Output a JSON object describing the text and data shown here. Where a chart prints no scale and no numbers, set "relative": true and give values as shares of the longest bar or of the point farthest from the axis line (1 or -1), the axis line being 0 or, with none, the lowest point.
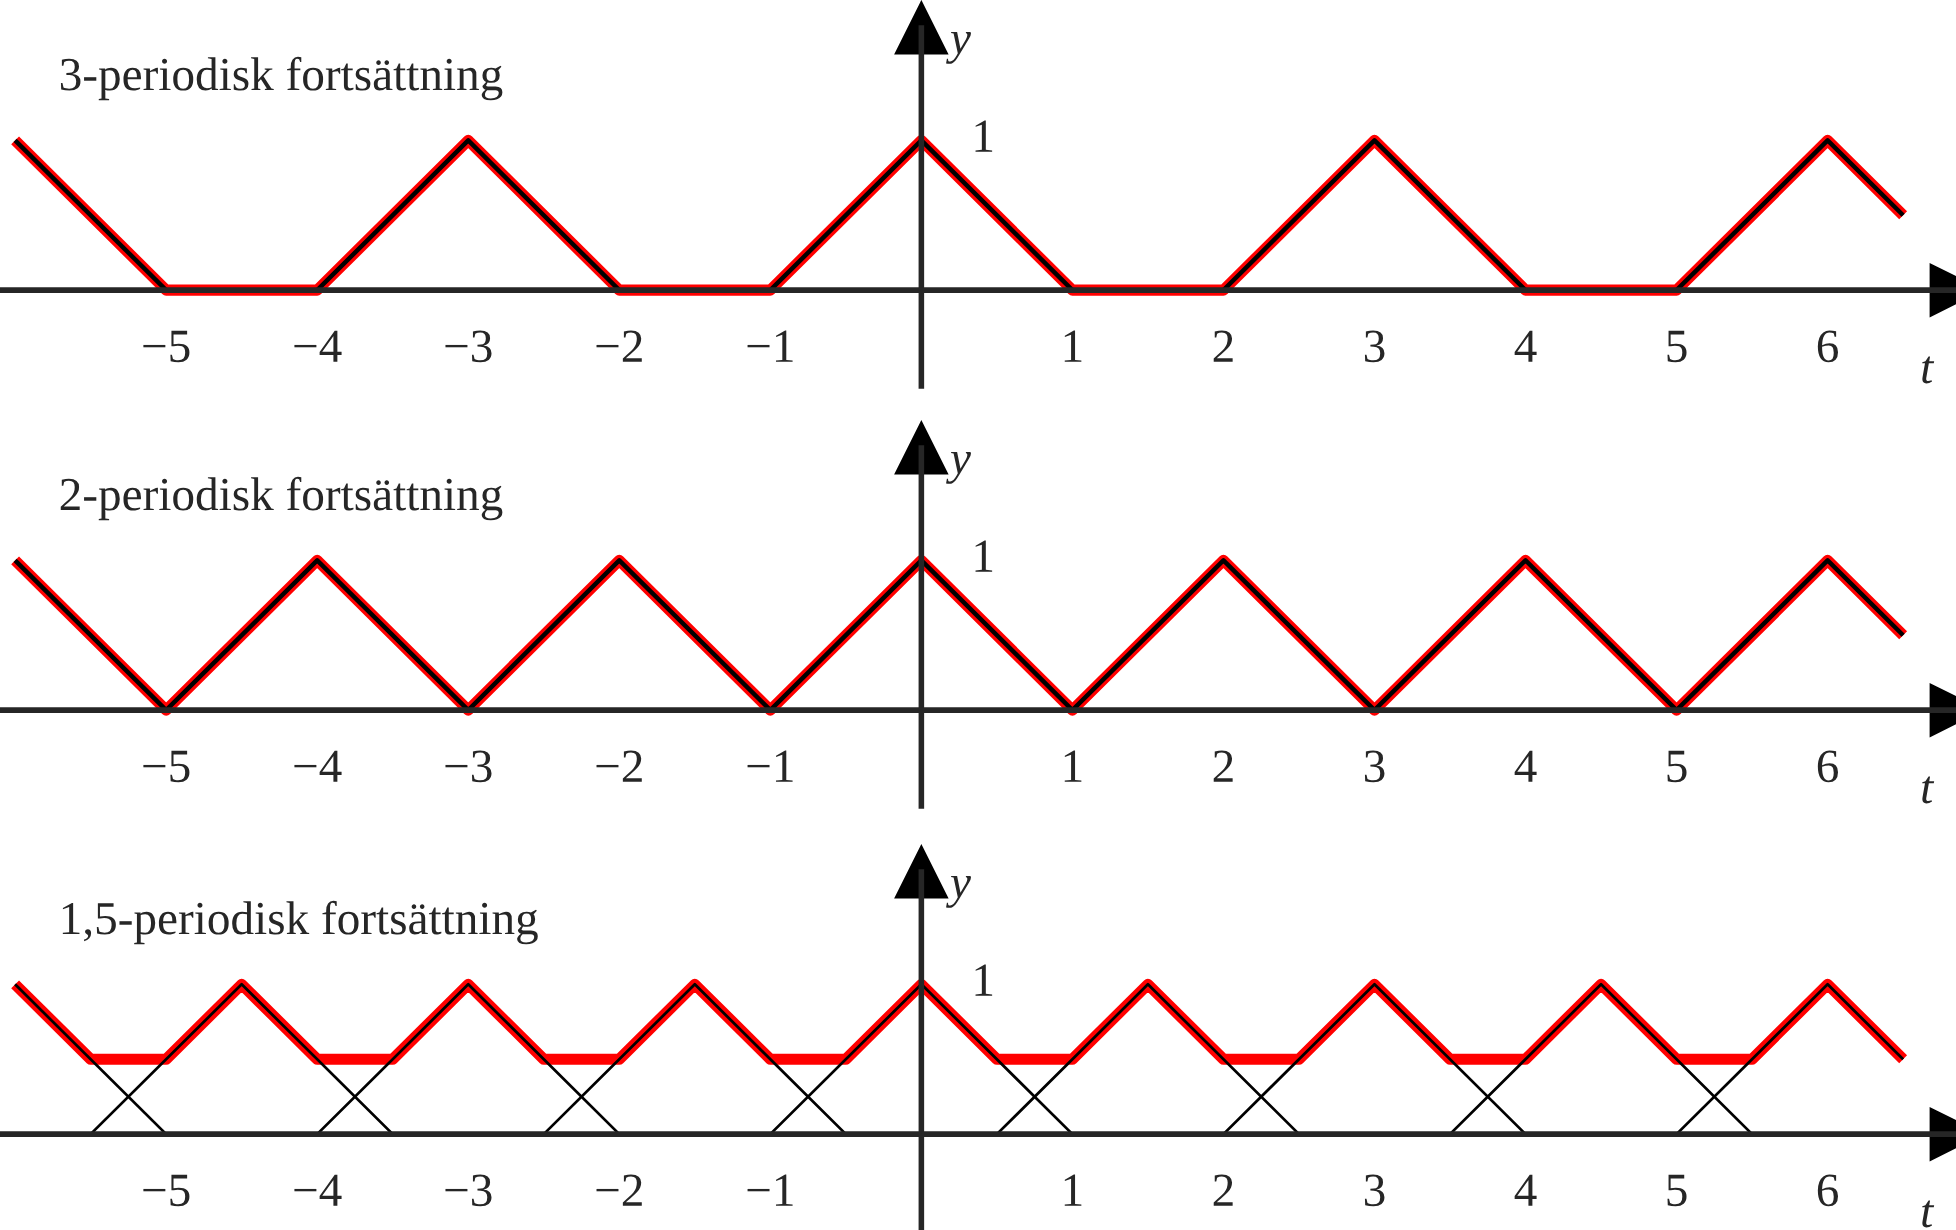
{
  "chart_data": [
    {
      "type": "line",
      "title": "3-periodisk fortsättning",
      "xlabel": "t",
      "ylabel": "y",
      "xlim": [
        -6.1,
        6.85
      ],
      "relative": true,
      "annotations": [
        "1"
      ],
      "grid": false,
      "legend": false,
      "xticks": [
        {
          "value": -5,
          "label": "−5"
        },
        {
          "value": -4,
          "label": "−4"
        },
        {
          "value": -3,
          "label": "−3"
        },
        {
          "value": -2,
          "label": "−2"
        },
        {
          "value": -1,
          "label": "−1"
        },
        1,
        2,
        3,
        4,
        5,
        6
      ],
      "series": [
        {
          "color": "#ff0000",
          "x": [
            -6,
            -5,
            -4,
            -3,
            -2,
            -1,
            0,
            1,
            2,
            3,
            4,
            5,
            6,
            6.5
          ],
          "values": [
            1,
            0,
            0,
            1,
            0,
            0,
            1,
            0,
            0,
            1,
            0,
            0,
            1,
            0.5
          ]
        },
        {
          "color": "#000000",
          "x": [
            -6,
            -5
          ],
          "values": [
            1,
            0
          ]
        },
        {
          "color": "#000000",
          "x": [
            -4,
            -3,
            -2
          ],
          "values": [
            0,
            1,
            0
          ]
        },
        {
          "color": "#000000",
          "x": [
            -1,
            0,
            1
          ],
          "values": [
            0,
            1,
            0
          ]
        },
        {
          "color": "#000000",
          "x": [
            2,
            3,
            4
          ],
          "values": [
            0,
            1,
            0
          ]
        },
        {
          "color": "#000000",
          "x": [
            5,
            6,
            6.5
          ],
          "values": [
            0,
            1,
            0.5
          ]
        }
      ]
    },
    {
      "type": "line",
      "title": "2-periodisk fortsättning",
      "xlabel": "t",
      "ylabel": "y",
      "xlim": [
        -6.1,
        6.85
      ],
      "relative": true,
      "annotations": [
        "1"
      ],
      "grid": false,
      "legend": false,
      "xticks": [
        {
          "value": -5,
          "label": "−5"
        },
        {
          "value": -4,
          "label": "−4"
        },
        {
          "value": -3,
          "label": "−3"
        },
        {
          "value": -2,
          "label": "−2"
        },
        {
          "value": -1,
          "label": "−1"
        },
        1,
        2,
        3,
        4,
        5,
        6
      ],
      "series": [
        {
          "color": "#ff0000",
          "x": [
            -6,
            -5,
            -4,
            -3,
            -2,
            -1,
            0,
            1,
            2,
            3,
            4,
            5,
            6,
            6.5
          ],
          "values": [
            1,
            0,
            1,
            0,
            1,
            0,
            1,
            0,
            1,
            0,
            1,
            0,
            1,
            0.5
          ]
        },
        {
          "color": "#000000",
          "x": [
            -6,
            -5,
            -4,
            -3,
            -2,
            -1,
            0,
            1,
            2,
            3,
            4,
            5,
            6,
            6.5
          ],
          "values": [
            1,
            0,
            1,
            0,
            1,
            0,
            1,
            0,
            1,
            0,
            1,
            0,
            1,
            0.5
          ]
        }
      ]
    },
    {
      "type": "line",
      "title": "1,5-periodisk fortsättning",
      "xlabel": "t",
      "ylabel": "y",
      "xlim": [
        -6.1,
        6.85
      ],
      "relative": true,
      "annotations": [
        "1"
      ],
      "grid": false,
      "legend": false,
      "xticks": [
        {
          "value": -5,
          "label": "−5"
        },
        {
          "value": -4,
          "label": "−4"
        },
        {
          "value": -3,
          "label": "−3"
        },
        {
          "value": -2,
          "label": "−2"
        },
        {
          "value": -1,
          "label": "−1"
        },
        1,
        2,
        3,
        4,
        5,
        6
      ],
      "series": [
        {
          "color": "#ff0000",
          "x": [
            -6,
            -5.5,
            -5,
            -4.5,
            -4,
            -3.5,
            -3,
            -2.5,
            -2,
            -1.5,
            -1,
            -0.5,
            0,
            0.5,
            1,
            1.5,
            2,
            2.5,
            3,
            3.5,
            4,
            4.5,
            5,
            5.5,
            6,
            6.5
          ],
          "values": [
            1,
            0.5,
            0.5,
            1,
            0.5,
            0.5,
            1,
            0.5,
            0.5,
            1,
            0.5,
            0.5,
            1,
            0.5,
            0.5,
            1,
            0.5,
            0.5,
            1,
            0.5,
            0.5,
            1,
            0.5,
            0.5,
            1,
            0.5
          ]
        },
        {
          "color": "#000000",
          "x": [
            -6,
            -5
          ],
          "values": [
            1,
            0
          ]
        },
        {
          "color": "#000000",
          "x": [
            -5.5,
            -4.5,
            -3.5
          ],
          "values": [
            0,
            1,
            0
          ]
        },
        {
          "color": "#000000",
          "x": [
            -4,
            -3,
            -2
          ],
          "values": [
            0,
            1,
            0
          ]
        },
        {
          "color": "#000000",
          "x": [
            -2.5,
            -1.5,
            -0.5
          ],
          "values": [
            0,
            1,
            0
          ]
        },
        {
          "color": "#000000",
          "x": [
            -1,
            0,
            1
          ],
          "values": [
            0,
            1,
            0
          ]
        },
        {
          "color": "#000000",
          "x": [
            0.5,
            1.5,
            2.5
          ],
          "values": [
            0,
            1,
            0
          ]
        },
        {
          "color": "#000000",
          "x": [
            2,
            3,
            4
          ],
          "values": [
            0,
            1,
            0
          ]
        },
        {
          "color": "#000000",
          "x": [
            3.5,
            4.5,
            5.5
          ],
          "values": [
            0,
            1,
            0
          ]
        },
        {
          "color": "#000000",
          "x": [
            5,
            6,
            6.5
          ],
          "values": [
            0,
            1,
            0.5
          ]
        }
      ]
    }
  ]
}
